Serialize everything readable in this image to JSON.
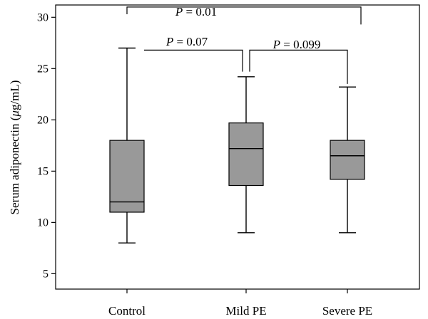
{
  "chart_data": {
    "type": "box",
    "ylabel_main": "Serum adiponectin (",
    "ylabel_unit_greek": "μ",
    "ylabel_unit_rest": "g/mL)",
    "ylim": [
      3.5,
      31.2
    ],
    "yticks": [
      5,
      10,
      15,
      20,
      25,
      30
    ],
    "categories": [
      "Control",
      "Mild PE",
      "Severe PE"
    ],
    "box_color": "#999999",
    "series": [
      {
        "name": "Control",
        "min": 8.0,
        "q1": 11.0,
        "median": 12.0,
        "q3": 18.0,
        "max": 27.0
      },
      {
        "name": "Mild PE",
        "min": 9.0,
        "q1": 13.6,
        "median": 17.2,
        "q3": 19.7,
        "max": 24.2
      },
      {
        "name": "Severe PE",
        "min": 9.0,
        "q1": 14.2,
        "median": 16.5,
        "q3": 18.0,
        "max": 23.2
      }
    ],
    "comparisons": [
      {
        "groups": [
          0,
          2
        ],
        "p_symbol": "P",
        "p_text": " = 0.01",
        "y": 31.0,
        "leg_to": [
          30.3,
          29.3
        ]
      },
      {
        "groups": [
          0,
          1
        ],
        "p_symbol": "P",
        "p_text": " = 0.07",
        "y": 26.8,
        "leg_to": [
          26.8,
          24.7
        ]
      },
      {
        "groups": [
          1,
          2
        ],
        "p_symbol": "P",
        "p_text": " = 0.099",
        "y": 26.8,
        "leg_to": [
          24.7,
          23.5
        ]
      }
    ]
  }
}
